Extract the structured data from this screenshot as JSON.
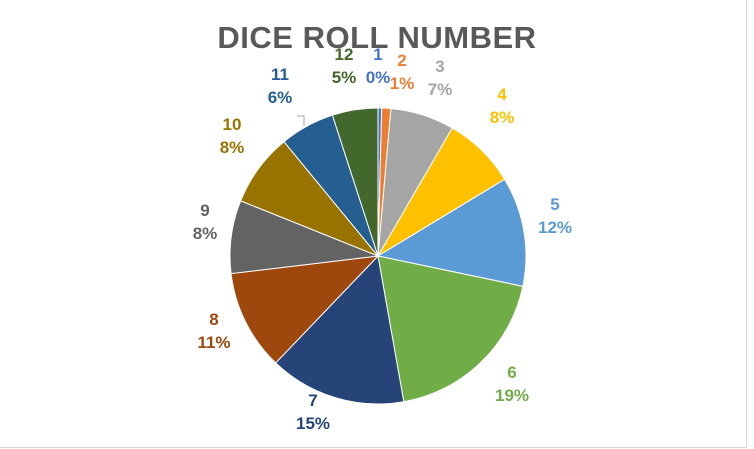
{
  "chart_data": {
    "type": "pie",
    "title": "DICE ROLL NUMBER",
    "categories": [
      "1",
      "2",
      "3",
      "4",
      "5",
      "6",
      "7",
      "8",
      "9",
      "10",
      "11",
      "12"
    ],
    "values": [
      0.4,
      1,
      7,
      8,
      12,
      19,
      15,
      11,
      8,
      8,
      6,
      5
    ],
    "percent_labels": [
      "0%",
      "1%",
      "7%",
      "8%",
      "12%",
      "19%",
      "15%",
      "11%",
      "8%",
      "8%",
      "6%",
      "5%"
    ],
    "colors": [
      "#4472C4",
      "#ED7D31",
      "#A5A5A5",
      "#FFC000",
      "#5B9BD5",
      "#70AD47",
      "#264478",
      "#9E480E",
      "#636363",
      "#997300",
      "#255E91",
      "#43682B"
    ],
    "legend": "none",
    "data_labels": "category-and-percent"
  }
}
